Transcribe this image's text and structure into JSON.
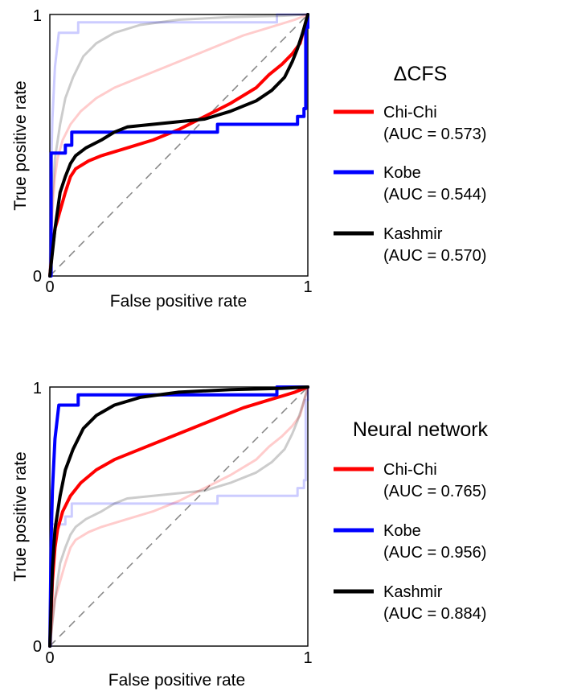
{
  "chart_data": [
    {
      "type": "line",
      "title": "ΔCFS",
      "xlabel": "False positive rate",
      "ylabel": "True positive rate",
      "xlim": [
        0,
        1
      ],
      "ylim": [
        0,
        1
      ],
      "xticks": [
        "0",
        "1"
      ],
      "yticks": [
        "0",
        "1"
      ],
      "legend_placement": "right",
      "reference_line": "diagonal dashed",
      "series": [
        {
          "name": "Chi-Chi",
          "auc": "(AUC = 0.573)",
          "color": "#ff0000",
          "x": [
            0,
            0.01,
            0.02,
            0.04,
            0.06,
            0.08,
            0.1,
            0.15,
            0.2,
            0.3,
            0.4,
            0.5,
            0.6,
            0.7,
            0.8,
            0.85,
            0.9,
            0.94,
            0.97,
            1
          ],
          "y": [
            0,
            0.1,
            0.18,
            0.25,
            0.32,
            0.38,
            0.41,
            0.44,
            0.46,
            0.49,
            0.52,
            0.56,
            0.61,
            0.66,
            0.72,
            0.77,
            0.81,
            0.85,
            0.89,
            1
          ]
        },
        {
          "name": "Kobe",
          "auc": "(AUC = 0.544)",
          "color": "#0000ff",
          "x": [
            0,
            0.005,
            0.005,
            0.06,
            0.06,
            0.085,
            0.085,
            0.65,
            0.65,
            0.96,
            0.96,
            0.985,
            0.985,
            0.992,
            0.992,
            1,
            1
          ],
          "y": [
            0,
            0,
            0.47,
            0.47,
            0.5,
            0.5,
            0.55,
            0.55,
            0.58,
            0.58,
            0.61,
            0.61,
            0.64,
            0.64,
            0.95,
            0.95,
            1
          ]
        },
        {
          "name": "Kashmir",
          "auc": "(AUC = 0.570)",
          "color": "#000000",
          "x": [
            0,
            0.02,
            0.04,
            0.06,
            0.08,
            0.1,
            0.14,
            0.2,
            0.25,
            0.3,
            0.4,
            0.5,
            0.6,
            0.7,
            0.8,
            0.86,
            0.91,
            0.94,
            0.96,
            0.98,
            1
          ],
          "y": [
            0,
            0.18,
            0.32,
            0.38,
            0.43,
            0.46,
            0.49,
            0.52,
            0.55,
            0.57,
            0.58,
            0.59,
            0.6,
            0.63,
            0.67,
            0.71,
            0.76,
            0.82,
            0.87,
            0.93,
            1
          ]
        }
      ],
      "faded_series": [
        {
          "name": "Chi-Chi",
          "color": "#ff0000",
          "x": [
            0,
            0.01,
            0.02,
            0.03,
            0.05,
            0.08,
            0.12,
            0.18,
            0.25,
            0.35,
            0.45,
            0.55,
            0.65,
            0.75,
            0.85,
            0.95,
            1
          ],
          "y": [
            0,
            0.25,
            0.38,
            0.45,
            0.52,
            0.58,
            0.63,
            0.68,
            0.72,
            0.76,
            0.8,
            0.84,
            0.88,
            0.92,
            0.95,
            0.98,
            1
          ]
        },
        {
          "name": "Kobe",
          "color": "#0000ff",
          "x": [
            0,
            0.005,
            0.01,
            0.02,
            0.035,
            0.035,
            0.11,
            0.11,
            0.88,
            0.88,
            1
          ],
          "y": [
            0,
            0.4,
            0.6,
            0.8,
            0.93,
            0.93,
            0.93,
            0.97,
            0.97,
            1,
            1
          ]
        },
        {
          "name": "Kashmir",
          "color": "#000000",
          "x": [
            0,
            0.01,
            0.02,
            0.04,
            0.06,
            0.09,
            0.13,
            0.18,
            0.25,
            0.35,
            0.5,
            0.7,
            0.9,
            1
          ],
          "y": [
            0,
            0.3,
            0.45,
            0.58,
            0.68,
            0.76,
            0.84,
            0.89,
            0.93,
            0.96,
            0.98,
            0.99,
            0.995,
            1
          ]
        }
      ]
    },
    {
      "type": "line",
      "title": "Neural network",
      "xlabel": "False positive rate",
      "ylabel": "True positive rate",
      "xlim": [
        0,
        1
      ],
      "ylim": [
        0,
        1
      ],
      "xticks": [
        "0",
        "1"
      ],
      "yticks": [
        "0",
        "1"
      ],
      "legend_placement": "right",
      "reference_line": "diagonal dashed",
      "series": [
        {
          "name": "Chi-Chi",
          "auc": "(AUC = 0.765)",
          "color": "#ff0000",
          "x": [
            0,
            0.01,
            0.02,
            0.03,
            0.05,
            0.08,
            0.12,
            0.18,
            0.25,
            0.35,
            0.45,
            0.55,
            0.65,
            0.75,
            0.85,
            0.95,
            1
          ],
          "y": [
            0,
            0.25,
            0.38,
            0.45,
            0.52,
            0.58,
            0.63,
            0.68,
            0.72,
            0.76,
            0.8,
            0.84,
            0.88,
            0.92,
            0.95,
            0.98,
            1
          ]
        },
        {
          "name": "Kobe",
          "auc": "(AUC = 0.956)",
          "color": "#0000ff",
          "x": [
            0,
            0.005,
            0.01,
            0.02,
            0.035,
            0.035,
            0.11,
            0.11,
            0.88,
            0.88,
            1
          ],
          "y": [
            0,
            0.4,
            0.6,
            0.8,
            0.93,
            0.93,
            0.93,
            0.97,
            0.97,
            1,
            1
          ]
        },
        {
          "name": "Kashmir",
          "auc": "(AUC = 0.884)",
          "color": "#000000",
          "x": [
            0,
            0.01,
            0.02,
            0.04,
            0.06,
            0.09,
            0.13,
            0.18,
            0.25,
            0.35,
            0.5,
            0.7,
            0.9,
            1
          ],
          "y": [
            0,
            0.3,
            0.45,
            0.58,
            0.68,
            0.76,
            0.84,
            0.89,
            0.93,
            0.96,
            0.98,
            0.99,
            0.995,
            1
          ]
        }
      ],
      "faded_series": [
        {
          "name": "Chi-Chi",
          "color": "#ff0000",
          "x": [
            0,
            0.01,
            0.02,
            0.04,
            0.06,
            0.08,
            0.1,
            0.15,
            0.2,
            0.3,
            0.4,
            0.5,
            0.6,
            0.7,
            0.8,
            0.85,
            0.9,
            0.94,
            0.97,
            1
          ],
          "y": [
            0,
            0.1,
            0.18,
            0.25,
            0.32,
            0.38,
            0.41,
            0.44,
            0.46,
            0.49,
            0.52,
            0.56,
            0.61,
            0.66,
            0.72,
            0.77,
            0.81,
            0.85,
            0.89,
            1
          ]
        },
        {
          "name": "Kobe",
          "color": "#0000ff",
          "x": [
            0,
            0.005,
            0.005,
            0.06,
            0.06,
            0.085,
            0.085,
            0.65,
            0.65,
            0.96,
            0.96,
            0.985,
            0.985,
            0.992,
            0.992,
            1,
            1
          ],
          "y": [
            0,
            0,
            0.47,
            0.47,
            0.5,
            0.5,
            0.55,
            0.55,
            0.58,
            0.58,
            0.61,
            0.61,
            0.64,
            0.64,
            0.95,
            0.95,
            1
          ]
        },
        {
          "name": "Kashmir",
          "color": "#000000",
          "x": [
            0,
            0.02,
            0.04,
            0.06,
            0.08,
            0.1,
            0.14,
            0.2,
            0.25,
            0.3,
            0.4,
            0.5,
            0.6,
            0.7,
            0.8,
            0.86,
            0.91,
            0.94,
            0.96,
            0.98,
            1
          ],
          "y": [
            0,
            0.18,
            0.32,
            0.38,
            0.43,
            0.46,
            0.49,
            0.52,
            0.55,
            0.57,
            0.58,
            0.59,
            0.6,
            0.63,
            0.67,
            0.71,
            0.76,
            0.82,
            0.87,
            0.93,
            1
          ]
        }
      ]
    }
  ]
}
